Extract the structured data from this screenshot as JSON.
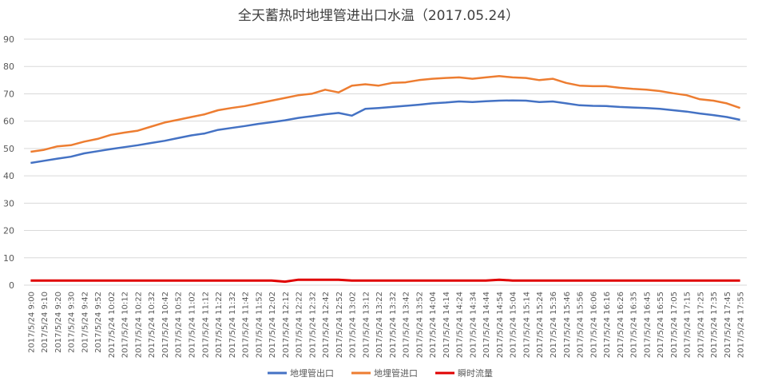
{
  "chart_data": {
    "type": "line",
    "title": "全天蓄热时地埋管进出口水温（2017.05.24）",
    "categories": [
      "2017/5/24 9:00",
      "2017/5/24 9:10",
      "2017/5/24 9:20",
      "2017/5/24 9:30",
      "2017/5/24 9:42",
      "2017/5/24 9:52",
      "2017/5/24 10:02",
      "2017/5/24 10:12",
      "2017/5/24 10:22",
      "2017/5/24 10:32",
      "2017/5/24 10:42",
      "2017/5/24 10:52",
      "2017/5/24 11:02",
      "2017/5/24 11:12",
      "2017/5/24 11:22",
      "2017/5/24 11:32",
      "2017/5/24 11:42",
      "2017/5/24 11:52",
      "2017/5/24 12:02",
      "2017/5/24 12:12",
      "2017/5/24 12:22",
      "2017/5/24 12:32",
      "2017/5/24 12:42",
      "2017/5/24 12:52",
      "2017/5/24 13:02",
      "2017/5/24 13:12",
      "2017/5/24 13:22",
      "2017/5/24 13:32",
      "2017/5/24 13:42",
      "2017/5/24 13:52",
      "2017/5/24 14:04",
      "2017/5/24 14:14",
      "2017/5/24 14:24",
      "2017/5/24 14:34",
      "2017/5/24 14:44",
      "2017/5/24 14:54",
      "2017/5/24 15:04",
      "2017/5/24 15:14",
      "2017/5/24 15:24",
      "2017/5/24 15:36",
      "2017/5/24 15:46",
      "2017/5/24 15:56",
      "2017/5/24 16:06",
      "2017/5/24 16:16",
      "2017/5/24 16:26",
      "2017/5/24 16:35",
      "2017/5/24 16:45",
      "2017/5/24 16:55",
      "2017/5/24 17:05",
      "2017/5/24 17:15",
      "2017/5/24 17:25",
      "2017/5/24 17:35",
      "2017/5/24 17:45",
      "2017/5/24 17:55"
    ],
    "series": [
      {
        "name": "地埋管出口",
        "color": "#4472c4",
        "values": [
          44.7,
          45.5,
          46.3,
          47,
          48.2,
          49,
          49.8,
          50.5,
          51.2,
          52,
          52.8,
          53.8,
          54.8,
          55.5,
          56.8,
          57.5,
          58.2,
          59,
          59.6,
          60.3,
          61.2,
          61.8,
          62.5,
          63,
          62,
          64.5,
          64.8,
          65.2,
          65.6,
          66,
          66.5,
          66.8,
          67.2,
          67,
          67.3,
          67.5,
          67.6,
          67.5,
          67,
          67.2,
          66.5,
          65.8,
          65.6,
          65.5,
          65.2,
          65,
          64.8,
          64.5,
          64,
          63.5,
          62.8,
          62.2,
          61.5,
          60.5
        ]
      },
      {
        "name": "地埋管进口",
        "color": "#ed7d31",
        "values": [
          48.8,
          49.5,
          50.8,
          51.2,
          52.5,
          53.5,
          55,
          55.8,
          56.5,
          58,
          59.5,
          60.5,
          61.5,
          62.5,
          64,
          64.8,
          65.5,
          66.5,
          67.5,
          68.5,
          69.5,
          70,
          71.5,
          70.5,
          73,
          73.5,
          73,
          74,
          74.2,
          75,
          75.5,
          75.8,
          76,
          75.5,
          76,
          76.5,
          76,
          75.8,
          75,
          75.5,
          74,
          73,
          72.8,
          72.8,
          72.2,
          71.8,
          71.5,
          71,
          70.2,
          69.5,
          68,
          67.5,
          66.5,
          64.8
        ]
      },
      {
        "name": "瞬时流量",
        "color": "#e00000",
        "values": [
          1.7,
          1.7,
          1.7,
          1.7,
          1.7,
          1.7,
          1.7,
          1.7,
          1.7,
          1.7,
          1.7,
          1.7,
          1.7,
          1.7,
          1.7,
          1.7,
          1.7,
          1.7,
          1.7,
          1.3,
          2,
          2,
          2,
          2,
          1.7,
          1.7,
          1.7,
          1.7,
          1.7,
          1.7,
          1.7,
          1.7,
          1.7,
          1.7,
          1.7,
          2,
          1.7,
          1.7,
          1.7,
          1.7,
          1.7,
          1.7,
          1.7,
          1.7,
          1.7,
          1.7,
          1.7,
          1.7,
          1.7,
          1.7,
          1.7,
          1.7,
          1.7,
          1.7
        ]
      }
    ],
    "ylim": [
      0,
      90
    ],
    "yticks": [
      0,
      10,
      20,
      30,
      40,
      50,
      60,
      70,
      80,
      90
    ],
    "grid": true,
    "legend": "bottom"
  }
}
